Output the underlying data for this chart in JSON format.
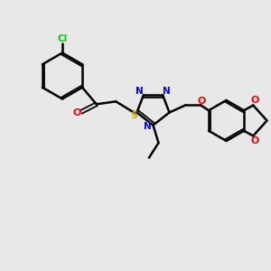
{
  "bg_color": "#e8e8e8",
  "bond_color": "#000000",
  "N_color": "#0000ff",
  "O_color": "#ff0000",
  "S_color": "#ccaa00",
  "Cl_color": "#00cc00",
  "figsize": [
    3.0,
    3.0
  ],
  "dpi": 100,
  "xlim": [
    0,
    10
  ],
  "ylim": [
    0,
    10
  ]
}
